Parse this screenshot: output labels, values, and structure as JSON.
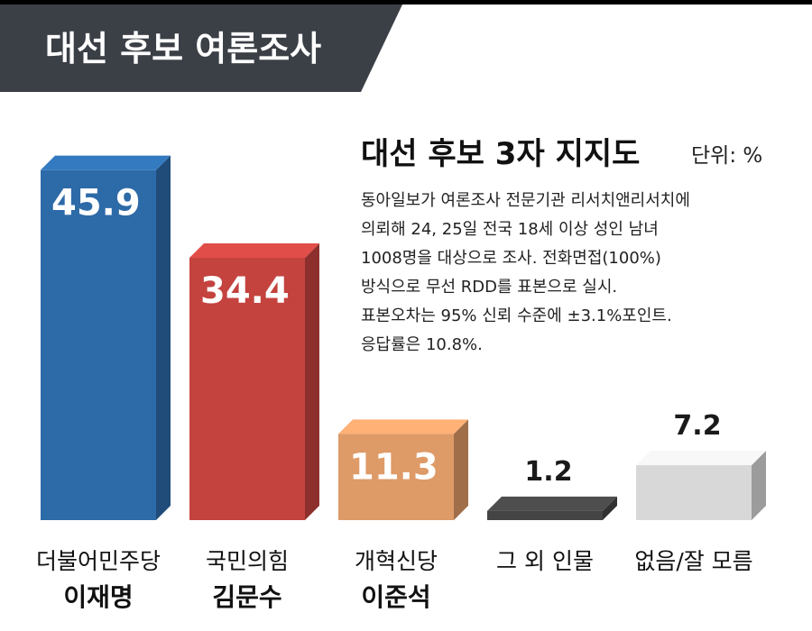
{
  "banner": {
    "title": "대선 후보 여론조사"
  },
  "subtitle": "대선 후보 3자 지지도",
  "unit": "단위: %",
  "notes": [
    "동아일보가 여론조사 전문기관 리서치앤리서치에",
    "의뢰해 24, 25일 전국 18세 이상 성인 남녀",
    "1008명을 대상으로 조사. 전화면접(100%)",
    "방식으로 무선 RDD를 표본으로 실시.",
    "표본오차는 95% 신뢰 수준에 ±3.1%포인트.",
    "응답률은 10.8%."
  ],
  "colors": {
    "banner": "#3b3f46",
    "blue": "#2d6aa8",
    "red": "#c4433f",
    "orange": "#de9a67",
    "dark": "#444444",
    "gray": "#d8d8d8"
  },
  "chart_data": {
    "type": "bar",
    "title": "대선 후보 3자 지지도",
    "unit": "%",
    "categories": [
      "더불어민주당",
      "국민의힘",
      "개혁신당",
      "그 외 인물",
      "없음/잘 모름"
    ],
    "candidates": [
      "이재명",
      "김문수",
      "이준석",
      "",
      ""
    ],
    "values": [
      45.9,
      34.4,
      11.3,
      1.2,
      7.2
    ],
    "value_labels": [
      "45.9",
      "34.4",
      "11.3",
      "1.2",
      "7.2"
    ],
    "colors": [
      "#2d6aa8",
      "#c4433f",
      "#de9a67",
      "#444444",
      "#d8d8d8"
    ],
    "label_position": [
      "inside",
      "inside",
      "inside",
      "above",
      "above"
    ]
  }
}
